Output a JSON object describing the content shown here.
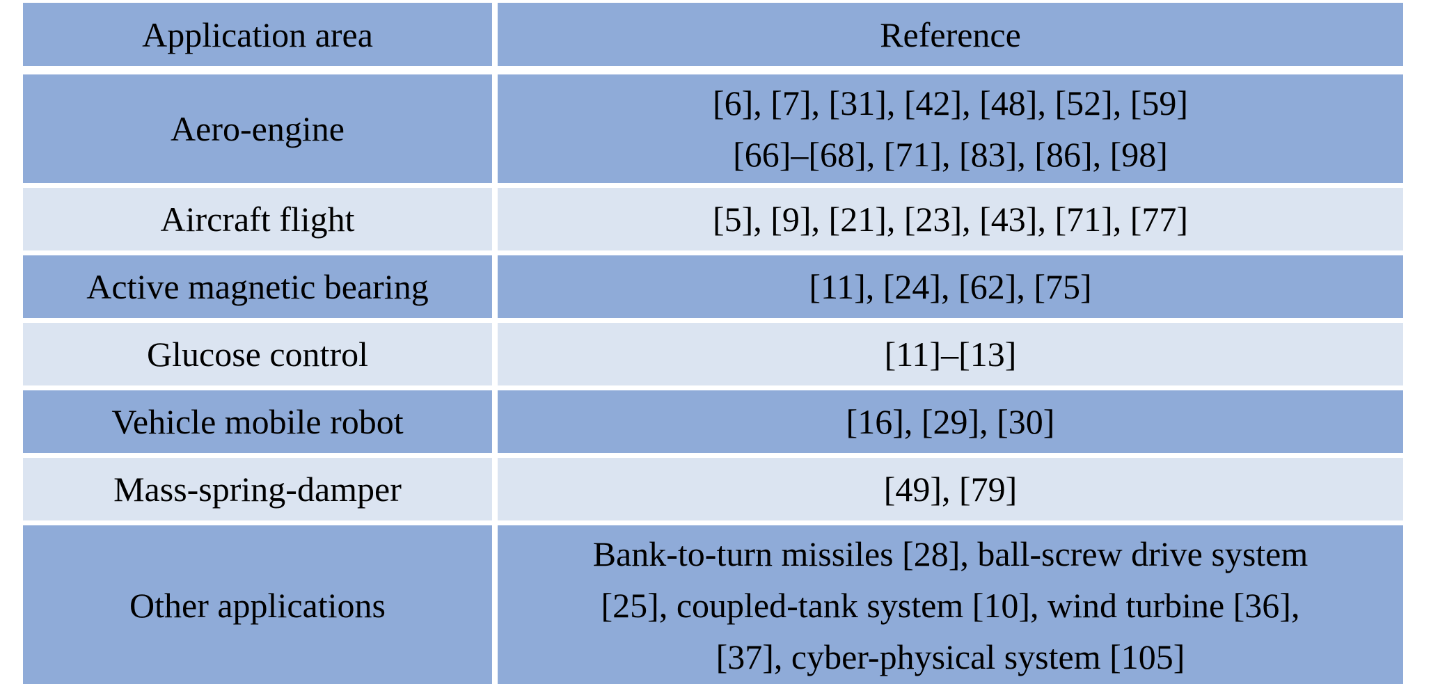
{
  "table": {
    "columns": [
      "Application area",
      "Reference"
    ],
    "rows": [
      {
        "area": "Aero-engine",
        "reference": "[6], [7], [31], [42], [48], [52], [59]\n[66]–[68], [71], [83], [86], [98]"
      },
      {
        "area": "Aircraft flight",
        "reference": "[5], [9], [21], [23], [43], [71], [77]"
      },
      {
        "area": "Active magnetic bearing",
        "reference": "[11], [24], [62], [75]"
      },
      {
        "area": "Glucose control",
        "reference": "[11]–[13]"
      },
      {
        "area": "Vehicle mobile robot",
        "reference": "[16], [29], [30]"
      },
      {
        "area": "Mass-spring-damper",
        "reference": "[49], [79]"
      },
      {
        "area": "Other applications",
        "reference": "Bank-to-turn missiles [28], ball-screw drive system\n[25], coupled-tank system [10], wind turbine [36],\n[37], cyber-physical system [105]"
      }
    ],
    "colors": {
      "band_dark": "#8fabd8",
      "band_light": "#dbe4f1",
      "separator": "#ffffff",
      "text": "#000000"
    }
  }
}
